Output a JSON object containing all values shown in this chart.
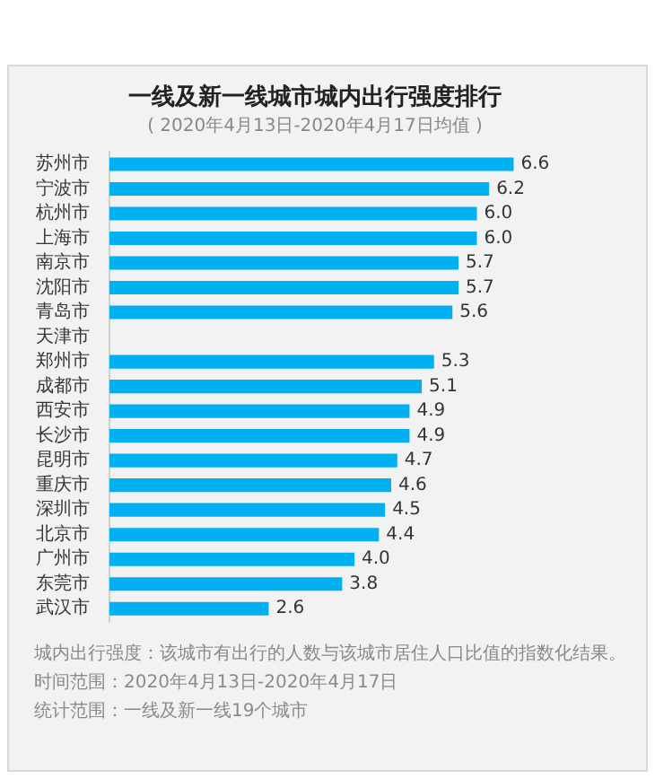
{
  "chart_data": {
    "type": "bar",
    "orientation": "horizontal",
    "title": "一线及新一线城市城内出行强度排行",
    "subtitle": "( 2020年4月13日-2020年4月17日均值 )",
    "categories": [
      "苏州市",
      "宁波市",
      "杭州市",
      "上海市",
      "南京市",
      "沈阳市",
      "青岛市",
      "天津市",
      "郑州市",
      "成都市",
      "西安市",
      "长沙市",
      "昆明市",
      "重庆市",
      "深圳市",
      "北京市",
      "广州市",
      "东莞市",
      "武汉市"
    ],
    "values": [
      6.6,
      6.2,
      6.0,
      6.0,
      5.7,
      5.7,
      5.6,
      null,
      5.3,
      5.1,
      4.9,
      4.9,
      4.7,
      4.6,
      4.5,
      4.4,
      4.0,
      3.8,
      2.6
    ],
    "value_labels": [
      "6.6",
      "6.2",
      "6.0",
      "6.0",
      "5.7",
      "5.7",
      "5.6",
      null,
      "5.3",
      "5.1",
      "4.9",
      "4.9",
      "4.7",
      "4.6",
      "4.5",
      "4.4",
      "4.0",
      "3.8",
      "2.6"
    ],
    "color": "#00b0f0",
    "legend": false,
    "annotations": [
      "城内出行强度：该城市有出行的人数与该城市居住人口比值的指数化结果。",
      "时间范围：2020年4月13日-2020年4月17日",
      "统计范围：一线及新一线19个城市"
    ]
  }
}
